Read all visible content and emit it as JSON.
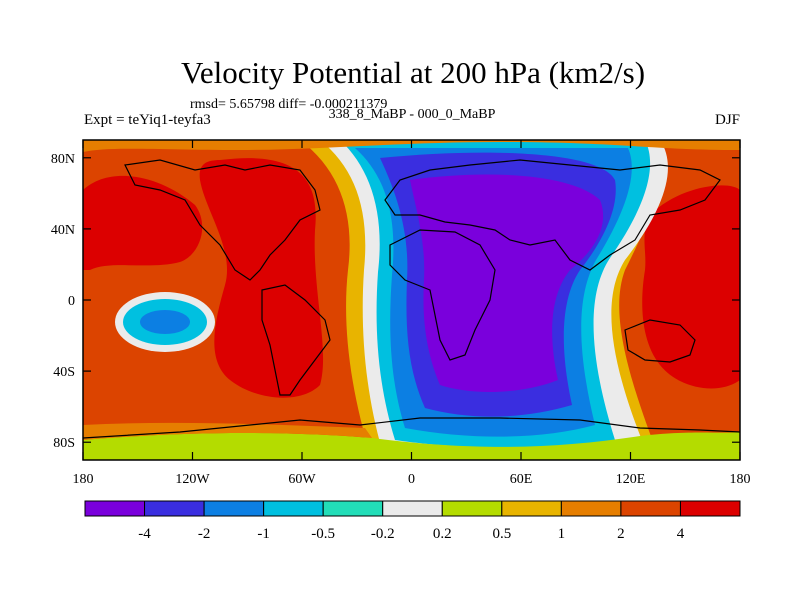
{
  "chart_data": {
    "type": "heatmap",
    "subtype": "filled-contour-map",
    "title": "Velocity Potential at 200 hPa (km2/s)",
    "stats_line": "rmsd= 5.65798 diff= -0.000211379",
    "left_label": "Expt = teYiq1-teyfa3",
    "center_label": "338_8_MaBP - 000_0_MaBP",
    "right_label": "DJF",
    "x_ticks": [
      "180",
      "120W",
      "60W",
      "0",
      "60E",
      "120E",
      "180"
    ],
    "x_tick_values": [
      -180,
      -120,
      -60,
      0,
      60,
      120,
      180
    ],
    "y_ticks": [
      "80N",
      "40N",
      "0",
      "40S",
      "80S"
    ],
    "y_tick_values": [
      80,
      40,
      0,
      -40,
      -80
    ],
    "xlim": [
      -180,
      180
    ],
    "ylim": [
      -90,
      90
    ],
    "levels": [
      -4,
      -2,
      -1,
      -0.5,
      -0.2,
      0.2,
      0.5,
      1,
      2,
      4
    ],
    "colorbar_labels": [
      "-4",
      "-2",
      "-1",
      "-0.5",
      "-0.2",
      "0.2",
      "0.5",
      "1",
      "2",
      "4"
    ],
    "colors": [
      "#7a00dc",
      "#3a2ee0",
      "#0c7fe3",
      "#00c0e0",
      "#22ddb8",
      "#ebebeb",
      "#b4dc00",
      "#e8b400",
      "#e67e00",
      "#dc4400",
      "#dc0000"
    ],
    "field_description": "negative (purple/blue) centered over Africa/Europe/Indian Ocean longitudes about 15E; positive (red) over Pacific and Americas; local minimum near 150W 15S",
    "major_features": [
      {
        "feature": "negative center",
        "lon": 15,
        "lat": 10,
        "value": -4.5
      },
      {
        "feature": "positive Pacific/America",
        "lon": -90,
        "lat": 10,
        "value": 4.5
      },
      {
        "feature": "positive Australia/W Pacific",
        "lon": 145,
        "lat": 10,
        "value": 4.5
      },
      {
        "feature": "local minimum",
        "lon": -150,
        "lat": -15,
        "value": -1.5
      }
    ]
  }
}
